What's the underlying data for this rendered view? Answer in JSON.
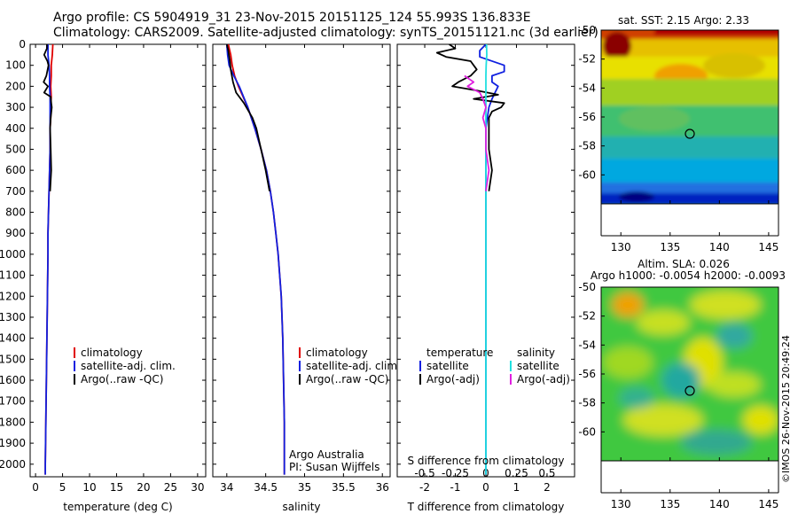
{
  "header": {
    "line1": "Argo profile: CS 5904919_31 23-Nov-2015 20151125_124 55.993S 136.833E",
    "line2": "Climatology: CARS2009. Satellite-adjusted climatology: synTS_20151121.nc (3d earlier)"
  },
  "credits": {
    "argo_australia": "Argo Australia",
    "pi": "PI: Susan Wijffels",
    "imos": "©IMOS 26-Nov-2015 20:49:24"
  },
  "colors": {
    "climatology": "#e00000",
    "satellite": "#1020e0",
    "argo": "#000000",
    "sal_satellite": "#20e0e0",
    "sal_argo": "#e020e0"
  },
  "chart_data": [
    {
      "type": "line",
      "id": "temperature",
      "xlabel": "temperature (deg C)",
      "ylabel": "",
      "xlim": [
        -1,
        31.5
      ],
      "ylim": [
        2060,
        0
      ],
      "x_ticks": [
        0,
        5,
        10,
        15,
        20,
        25,
        30
      ],
      "y_ticks": [
        0,
        100,
        200,
        300,
        400,
        500,
        600,
        700,
        800,
        900,
        1000,
        1100,
        1200,
        1300,
        1400,
        1500,
        1600,
        1700,
        1800,
        1900,
        2000
      ],
      "legend": [
        "climatology",
        "satellite-adj. clim.",
        "Argo(..raw -QC)"
      ],
      "series": [
        {
          "name": "climatology",
          "depth": [
            0,
            50,
            100,
            150,
            200,
            250,
            300,
            350,
            400,
            500,
            600,
            700,
            800,
            900,
            1000,
            1200,
            1400,
            1600,
            1800,
            2000,
            2050
          ],
          "x": [
            3.2,
            3.1,
            2.9,
            2.9,
            2.8,
            2.9,
            2.8,
            2.8,
            2.7,
            2.7,
            2.6,
            2.5,
            2.4,
            2.3,
            2.3,
            2.2,
            2.1,
            2.0,
            1.9,
            1.8,
            1.8
          ]
        },
        {
          "name": "satellite-adj. clim.",
          "depth": [
            0,
            50,
            100,
            150,
            200,
            250,
            300,
            350,
            400,
            500,
            600,
            700,
            800,
            900,
            1000,
            1200,
            1400,
            1600,
            1800,
            2000,
            2050
          ],
          "x": [
            2.3,
            2.3,
            2.5,
            2.6,
            2.6,
            2.7,
            2.7,
            2.7,
            2.7,
            2.7,
            2.6,
            2.5,
            2.4,
            2.3,
            2.3,
            2.2,
            2.1,
            2.0,
            1.9,
            1.8,
            1.8
          ]
        },
        {
          "name": "Argo(..raw -QC)",
          "depth": [
            0,
            20,
            50,
            80,
            100,
            150,
            180,
            200,
            230,
            250,
            280,
            300,
            350,
            400,
            500,
            600,
            700
          ],
          "x": [
            2.1,
            2.1,
            1.6,
            2.2,
            2.4,
            2.0,
            1.5,
            2.3,
            1.6,
            2.8,
            2.9,
            3.0,
            2.8,
            2.7,
            2.8,
            2.9,
            2.7
          ]
        }
      ]
    },
    {
      "type": "line",
      "id": "salinity",
      "xlabel": "salinity",
      "ylabel": "",
      "xlim": [
        33.82,
        36.1
      ],
      "ylim": [
        2060,
        0
      ],
      "x_ticks": [
        34,
        34.5,
        35,
        35.5,
        36
      ],
      "legend": [
        "climatology",
        "satellite-adj. clim.",
        "Argo(..raw -QC)"
      ],
      "series": [
        {
          "name": "climatology",
          "depth": [
            0,
            50,
            100,
            150,
            200,
            300,
            400,
            500,
            600,
            700,
            800,
            900,
            1000,
            1200,
            1400,
            1600,
            1800,
            2000,
            2050
          ],
          "x": [
            34.02,
            34.05,
            34.07,
            34.1,
            34.15,
            34.27,
            34.36,
            34.44,
            34.51,
            34.56,
            34.6,
            34.63,
            34.66,
            34.7,
            34.72,
            34.73,
            34.74,
            34.74,
            34.74
          ]
        },
        {
          "name": "satellite-adj. clim.",
          "depth": [
            0,
            50,
            100,
            150,
            200,
            300,
            400,
            500,
            600,
            700,
            800,
            900,
            1000,
            1200,
            1400,
            1600,
            1800,
            2000,
            2050
          ],
          "x": [
            34.0,
            34.01,
            34.03,
            34.09,
            34.16,
            34.27,
            34.36,
            34.44,
            34.51,
            34.56,
            34.6,
            34.63,
            34.66,
            34.7,
            34.72,
            34.73,
            34.74,
            34.74,
            34.74
          ]
        },
        {
          "name": "Argo(..raw -QC)",
          "depth": [
            0,
            30,
            80,
            120,
            180,
            230,
            280,
            350,
            400,
            500,
            600,
            700
          ],
          "x": [
            34.0,
            34.02,
            34.04,
            34.05,
            34.08,
            34.12,
            34.22,
            34.33,
            34.38,
            34.44,
            34.5,
            34.55
          ]
        }
      ]
    },
    {
      "type": "line",
      "id": "difference",
      "xlabel": "T difference from climatology",
      "xlabel_top": "S difference from climatology",
      "ylabel": "",
      "xlim": [
        -2.9,
        2.9
      ],
      "ylim": [
        2060,
        0
      ],
      "x_ticks": [
        -2,
        -1,
        0,
        1,
        2
      ],
      "s_ticks": [
        "-0.5",
        "-0.25",
        "0",
        "0.25",
        "0.5"
      ],
      "legend_temperature": [
        "temperature",
        "satellite",
        "Argo(-adj)"
      ],
      "legend_salinity": [
        "salinity",
        "satellite",
        "Argo(-adj)"
      ],
      "series": [
        {
          "name": "satellite",
          "depth": [
            0,
            30,
            60,
            100,
            130,
            150,
            180,
            200,
            230,
            260,
            300,
            400,
            600,
            800,
            1000,
            1500,
            2050
          ],
          "x": [
            0.0,
            -0.2,
            -0.2,
            0.6,
            0.6,
            0.2,
            0.2,
            0.4,
            0.3,
            0.2,
            0.1,
            0.0,
            0.0,
            0.0,
            0.0,
            0.0,
            0.0
          ]
        },
        {
          "name": "Argo(-adj)",
          "depth": [
            0,
            20,
            40,
            60,
            80,
            100,
            120,
            150,
            180,
            200,
            220,
            240,
            260,
            280,
            300,
            320,
            350,
            400,
            500,
            600,
            700
          ],
          "x": [
            -1.2,
            -1.0,
            -1.6,
            -1.3,
            -0.5,
            -0.4,
            -0.3,
            -0.5,
            -0.9,
            -1.1,
            -0.3,
            0.4,
            -0.4,
            0.6,
            0.5,
            0.2,
            0.1,
            0.1,
            0.1,
            0.2,
            0.1
          ]
        },
        {
          "name": "satellite",
          "depth": [
            0,
            50,
            100,
            150,
            200,
            300,
            500,
            1000,
            1500,
            2050
          ],
          "x": [
            0.02,
            0.03,
            0.01,
            0.0,
            0.0,
            0.0,
            0.0,
            0.0,
            0.0,
            0.0
          ]
        },
        {
          "name": "Argo(-adj)",
          "depth": [
            150,
            180,
            200,
            230,
            260,
            300,
            350,
            400,
            500,
            600,
            700
          ],
          "x": [
            -0.7,
            -0.4,
            -0.6,
            -0.2,
            -0.1,
            0.0,
            -0.1,
            0.0,
            0.0,
            0.1,
            0.0
          ]
        }
      ]
    },
    {
      "type": "heatmap",
      "id": "sst-map",
      "title": "sat. SST: 2.15 Argo: 2.33",
      "xlim": [
        128,
        146
      ],
      "ylim": [
        -62,
        -50
      ],
      "x_ticks": [
        130,
        135,
        140,
        145
      ],
      "y_ticks": [
        -50,
        -52,
        -54,
        -56,
        -58,
        -60
      ],
      "marker": {
        "lon": 136.833,
        "lat": -55.993
      }
    },
    {
      "type": "heatmap",
      "id": "sla-map",
      "title": "Altim. SLA: 0.026",
      "subtitle": "Argo h1000: -0.0054 h2000: -0.0093",
      "xlim": [
        128,
        146
      ],
      "ylim": [
        -62,
        -50
      ],
      "x_ticks": [
        130,
        135,
        140,
        145
      ],
      "y_ticks": [
        -50,
        -52,
        -54,
        -56,
        -58,
        -60
      ],
      "marker": {
        "lon": 136.833,
        "lat": -55.993
      }
    }
  ]
}
